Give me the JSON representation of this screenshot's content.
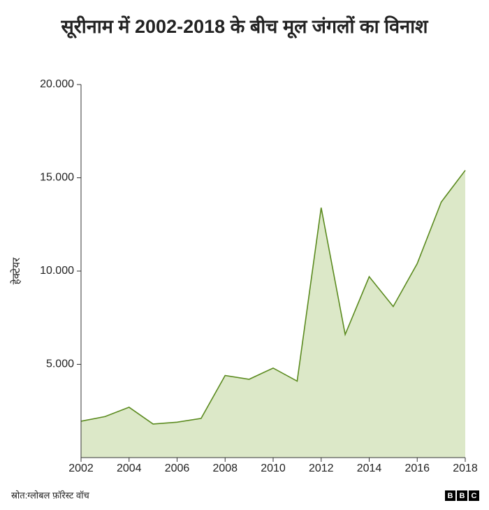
{
  "chart_data": {
    "type": "area",
    "title": "सूरीनाम में 2002-2018 के बीच मूल जंगलों का विनाश",
    "y_label": "हेक्टेयर",
    "x": [
      2002,
      2003,
      2004,
      2005,
      2006,
      2007,
      2008,
      2009,
      2010,
      2011,
      2012,
      2013,
      2014,
      2015,
      2016,
      2017,
      2018
    ],
    "values": [
      1950,
      2200,
      2700,
      1800,
      1900,
      2100,
      4400,
      4200,
      4800,
      4100,
      13400,
      6600,
      9700,
      8100,
      10400,
      13700,
      15400
    ],
    "color": "#5a8a1e",
    "fill_color": "#dce8c8",
    "xlim": [
      2002,
      2018
    ],
    "xticks": [
      2002,
      2004,
      2006,
      2008,
      2010,
      2012,
      2014,
      2016,
      2018
    ],
    "ylim": [
      0,
      20000
    ],
    "yticks": [
      {
        "value": 5000,
        "label": "5.000"
      },
      {
        "value": 10000,
        "label": "10.000"
      },
      {
        "value": 15000,
        "label": "15.000"
      },
      {
        "value": 20000,
        "label": "20.000"
      }
    ]
  },
  "footer": {
    "source": "स्रोत:ग्लोबल फ़ॉरेस्ट वॉच",
    "logo": [
      "B",
      "B",
      "C"
    ]
  }
}
